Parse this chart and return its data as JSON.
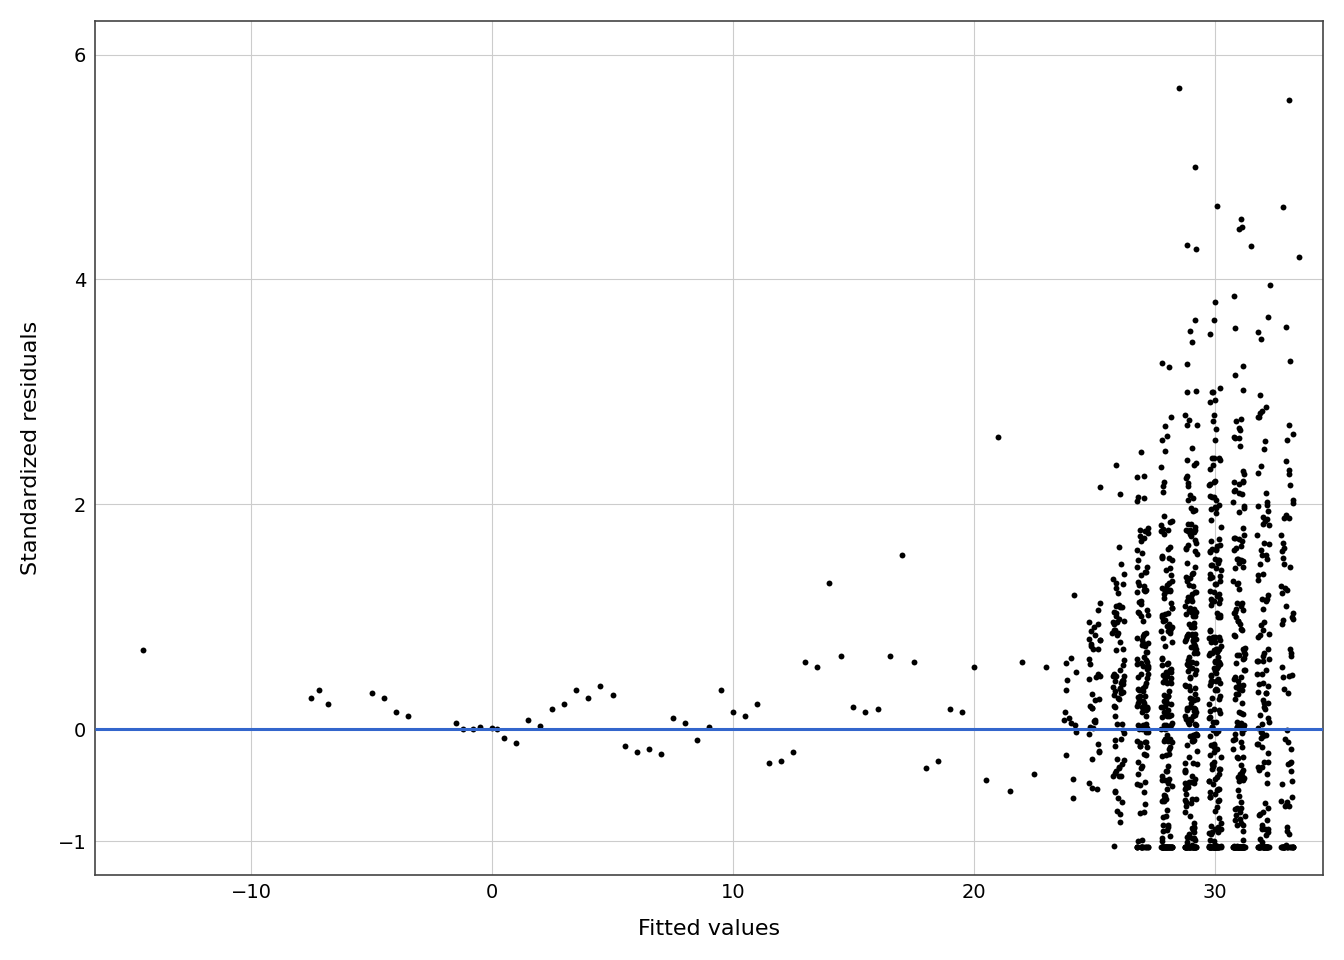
{
  "title": "",
  "xlabel": "Fitted values",
  "ylabel": "Standardized residuals",
  "xlim": [
    -16.5,
    34.5
  ],
  "ylim": [
    -1.3,
    6.3
  ],
  "yticks": [
    -1,
    0,
    2,
    4,
    6
  ],
  "xticks": [
    -10,
    0,
    10,
    20,
    30
  ],
  "background_color": "#ffffff",
  "grid_color": "#cccccc",
  "dot_color": "#000000",
  "dot_size": 18,
  "line_color": "#3366CC",
  "line_width": 2.2,
  "seed": 42
}
